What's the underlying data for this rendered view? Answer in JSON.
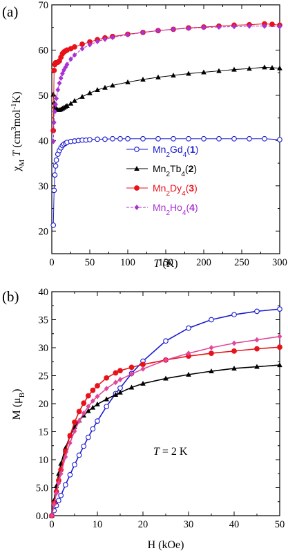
{
  "colors": {
    "mn2gd4": "#1a1acf",
    "mn2tb4": "#000000",
    "mn2dy4": "#e8121b",
    "mn2ho4": "#a832d4",
    "mn2ho4_b": "#e0479b",
    "axis": "#000000"
  },
  "chart_data": [
    {
      "type": "scatter",
      "panel_label": "(a)",
      "title": "",
      "xlabel": "T (K)",
      "ylabel": "χMT (cm3mol-1K)",
      "xlim": [
        0,
        300
      ],
      "ylim": [
        15,
        70
      ],
      "xticks": [
        "0",
        "50",
        "100",
        "150",
        "200",
        "250",
        "300"
      ],
      "yticks": [
        "20",
        "30",
        "40",
        "50",
        "60",
        "70"
      ],
      "grid": false,
      "legend_position": "center-right",
      "series": [
        {
          "name": "Mn2Gd4(1)",
          "marker": "open-circle",
          "line": "solid",
          "x": [
            2,
            3,
            4,
            5,
            6,
            8,
            10,
            12,
            14,
            16,
            18,
            20,
            25,
            30,
            35,
            40,
            45,
            50,
            60,
            70,
            80,
            90,
            100,
            120,
            140,
            160,
            180,
            200,
            220,
            240,
            260,
            280,
            300
          ],
          "y": [
            21.3,
            29,
            32.4,
            34.4,
            35.7,
            37,
            37.8,
            38.4,
            38.9,
            39.2,
            39.4,
            39.6,
            39.8,
            39.9,
            40,
            40.1,
            40.1,
            40.2,
            40.3,
            40.3,
            40.4,
            40.4,
            40.4,
            40.4,
            40.4,
            40.4,
            40.4,
            40.4,
            40.4,
            40.4,
            40.4,
            40.4,
            40.2
          ]
        },
        {
          "name": "Mn2Tb4(2)",
          "marker": "filled-triangle",
          "line": "solid",
          "x": [
            2,
            3,
            4,
            5,
            6,
            8,
            10,
            12,
            14,
            16,
            18,
            20,
            25,
            30,
            40,
            50,
            60,
            70,
            80,
            100,
            120,
            140,
            160,
            180,
            200,
            220,
            240,
            260,
            280,
            290,
            300
          ],
          "y": [
            50.2,
            48.4,
            47.6,
            47.2,
            47,
            46.8,
            46.8,
            46.9,
            47.1,
            47.3,
            47.5,
            47.7,
            48.2,
            48.8,
            49.7,
            50.5,
            51.2,
            51.7,
            52.2,
            52.9,
            53.5,
            54,
            54.4,
            54.8,
            55.1,
            55.4,
            55.7,
            55.9,
            56.2,
            56.1,
            56
          ]
        },
        {
          "name": "Mn2Dy4(3)",
          "marker": "filled-circle",
          "line": "solid",
          "x": [
            2,
            3,
            4,
            5,
            6,
            8,
            10,
            12,
            14,
            16,
            18,
            20,
            25,
            30,
            40,
            50,
            60,
            70,
            80,
            100,
            120,
            140,
            160,
            180,
            200,
            220,
            240,
            260,
            280,
            290,
            300
          ],
          "y": [
            42.2,
            55.5,
            56.8,
            57.2,
            57.2,
            57.3,
            57.6,
            58.4,
            59.2,
            59.6,
            59.8,
            60,
            60.3,
            60.7,
            61.3,
            61.8,
            62.3,
            62.7,
            63,
            63.5,
            63.9,
            64.3,
            64.6,
            64.9,
            65.1,
            65.3,
            65.5,
            65.6,
            65.8,
            65.7,
            65.5
          ]
        },
        {
          "name": "Mn2Ho4(4)",
          "marker": "filled-diamond",
          "line": "dashed",
          "x": [
            2,
            3,
            4,
            5,
            6,
            8,
            10,
            12,
            14,
            16,
            18,
            20,
            25,
            30,
            40,
            50,
            60,
            70,
            80,
            100,
            120,
            140,
            160,
            180,
            200,
            220,
            240,
            260,
            280,
            300
          ],
          "y": [
            39.8,
            44,
            46.4,
            48,
            49.3,
            51.2,
            52.7,
            53.8,
            54.8,
            55.6,
            56.2,
            56.8,
            58,
            58.9,
            60.3,
            61.2,
            61.9,
            62.4,
            62.8,
            63.4,
            63.9,
            64.3,
            64.6,
            64.8,
            65,
            65.1,
            65.2,
            65.3,
            65.3,
            65.2
          ]
        }
      ]
    },
    {
      "type": "line",
      "panel_label": "(b)",
      "title": "",
      "annotation": "T = 2 K",
      "xlabel": "H (kOe)",
      "ylabel": "M (μB)",
      "xlim": [
        0,
        50
      ],
      "ylim": [
        0,
        40
      ],
      "xticks": [
        "0",
        "10",
        "20",
        "30",
        "40",
        "50"
      ],
      "yticks": [
        "0.0",
        "5.0",
        "10",
        "15",
        "20",
        "25",
        "30",
        "35",
        "40"
      ],
      "grid": false,
      "series": [
        {
          "marker": "open-circle",
          "colorKey": "mn2gd4",
          "x": [
            0,
            0.5,
            1,
            1.5,
            2,
            3,
            4,
            5,
            6,
            7,
            8,
            9,
            10,
            12,
            14,
            15,
            17.5,
            20,
            25,
            30,
            35,
            40,
            45,
            50
          ],
          "y": [
            0,
            0.9,
            1.8,
            2.7,
            3.6,
            5.5,
            7.3,
            9.1,
            10.8,
            12.4,
            14,
            15.5,
            16.9,
            19.5,
            21.8,
            22.8,
            25.4,
            27.6,
            31.2,
            33.5,
            35,
            35.9,
            36.5,
            36.9
          ]
        },
        {
          "marker": "filled-triangle",
          "colorKey": "mn2tb4",
          "x": [
            0,
            0.5,
            1,
            1.5,
            2,
            3,
            4,
            5,
            6,
            7,
            8,
            9,
            10,
            12,
            14,
            15,
            17.5,
            20,
            25,
            30,
            35,
            40,
            45,
            50
          ],
          "y": [
            0,
            2.8,
            5.3,
            7.5,
            9.3,
            12.1,
            14.2,
            15.8,
            17,
            17.9,
            18.7,
            19.3,
            19.9,
            20.8,
            21.6,
            22,
            22.9,
            23.6,
            24.5,
            25.2,
            25.8,
            26.3,
            26.6,
            26.9
          ]
        },
        {
          "marker": "filled-circle",
          "colorKey": "mn2dy4",
          "x": [
            0,
            0.5,
            1,
            1.5,
            2,
            3,
            4,
            5,
            6,
            7,
            8,
            9,
            10,
            12,
            14,
            15,
            17.5,
            20,
            25,
            30,
            35,
            40,
            45,
            50
          ],
          "y": [
            0,
            2.2,
            4.3,
            6.3,
            8.2,
            11.5,
            14.3,
            16.7,
            18.6,
            20.1,
            21.4,
            22.4,
            23.2,
            24.6,
            25.5,
            25.9,
            26.5,
            27,
            27.8,
            28.5,
            29,
            29.4,
            29.8,
            30.1
          ]
        },
        {
          "marker": "filled-diamond",
          "colorKey": "mn2ho4_b",
          "x": [
            0,
            0.5,
            1,
            1.5,
            2,
            3,
            4,
            5,
            6,
            7,
            8,
            9,
            10,
            12,
            14,
            15,
            17.5,
            20,
            25,
            30,
            35,
            40,
            45,
            50
          ],
          "y": [
            0,
            2,
            4,
            5.8,
            7.5,
            10.5,
            13,
            15.1,
            16.9,
            18.3,
            19.5,
            20.5,
            21.3,
            22.7,
            23.8,
            24.3,
            25.3,
            26.2,
            27.8,
            29,
            30,
            30.8,
            31.4,
            32
          ]
        }
      ]
    }
  ]
}
